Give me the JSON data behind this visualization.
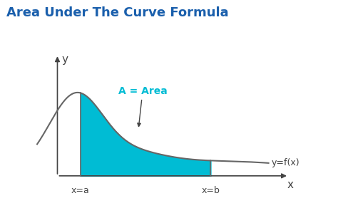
{
  "title": "Area Under The Curve Formula",
  "title_color": "#1a5fac",
  "title_fontsize": 13,
  "bg_color": "#ffffff",
  "curve_color": "#666666",
  "fill_color": "#00bcd4",
  "fill_alpha": 1.0,
  "axis_color": "#444444",
  "label_x": "x",
  "label_y": "y",
  "label_xa": "x=a",
  "label_xb": "x=b",
  "label_func": "y=f(x)",
  "label_area": "A = Area",
  "area_label_color": "#00bcd4",
  "func_label_color": "#444444",
  "x_a": 2.0,
  "x_b": 6.5,
  "x_start": 0.5,
  "x_end": 8.5,
  "ylim": [
    -0.5,
    4.0
  ],
  "xlim": [
    -0.2,
    9.5
  ]
}
